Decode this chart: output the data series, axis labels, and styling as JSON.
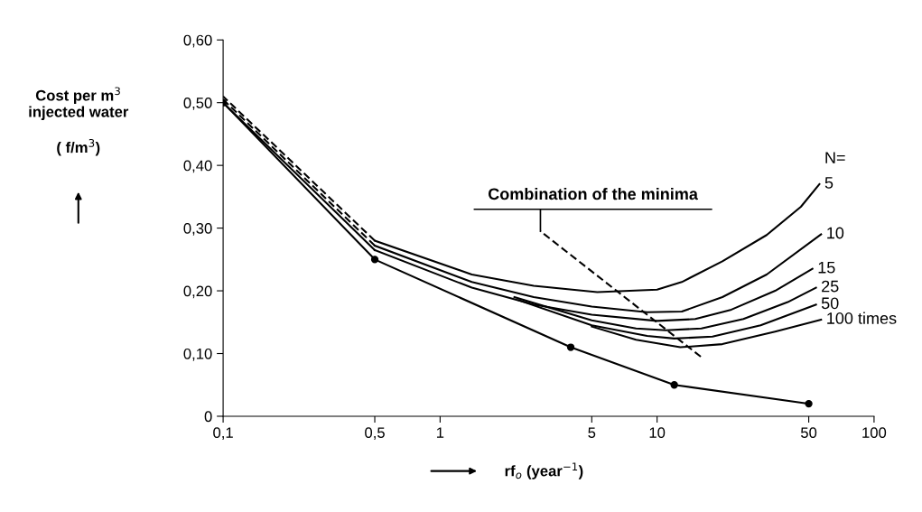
{
  "chart_data": {
    "type": "line",
    "xlabel": "rf$_{o}$ (year$^{−1}$)",
    "ylabel": "Cost per m$^{3}$\ninjected water\n\n( f/m$^{3}$)",
    "log": "x",
    "xlim": [
      0.1,
      100
    ],
    "ylim": [
      0,
      0.6
    ],
    "xticks": [
      {
        "value": 0.1,
        "label": "0,1"
      },
      {
        "value": 0.5,
        "label": "0,5"
      },
      1,
      5,
      10,
      50,
      100
    ],
    "yticks": [
      0,
      {
        "value": 0.1,
        "label": "0,10"
      },
      {
        "value": 0.2,
        "label": "0,20"
      },
      {
        "value": 0.3,
        "label": "0,30"
      },
      {
        "value": 0.4,
        "label": "0,40"
      },
      {
        "value": 0.5,
        "label": "0,50"
      },
      {
        "value": 0.6,
        "label": "0,60"
      }
    ],
    "grid": false,
    "annotations": [
      "N=",
      "Combination of the minima"
    ],
    "series": [
      {
        "color": "#000000",
        "line_style": "dashed",
        "x": [
          0.1,
          0.5
        ],
        "values": [
          0.51,
          0.28
        ]
      },
      {
        "color": "#000000",
        "line_style": "dashed",
        "x": [
          0.1,
          0.5
        ],
        "values": [
          0.505,
          0.272
        ]
      },
      {
        "color": "#000000",
        "line_style": "solid",
        "x": [
          0.1,
          0.5
        ],
        "values": [
          0.5,
          0.265
        ]
      },
      {
        "color": "#000000",
        "line_style": "solid",
        "marker": "circle",
        "x": [
          0.1,
          0.5,
          4,
          12,
          50
        ],
        "values": [
          0.5,
          0.25,
          0.11,
          0.05,
          0.02
        ]
      },
      {
        "name": "5",
        "color": "#000000",
        "line_style": "solid",
        "x": [
          0.5,
          1.4,
          2.7,
          5.3,
          10,
          13,
          20,
          32,
          46,
          56
        ],
        "values": [
          0.28,
          0.226,
          0.208,
          0.198,
          0.202,
          0.214,
          0.247,
          0.289,
          0.334,
          0.37
        ]
      },
      {
        "name": "10",
        "color": "#000000",
        "line_style": "solid",
        "x": [
          0.5,
          1.4,
          2.7,
          5,
          9,
          13,
          20,
          32,
          57
        ],
        "values": [
          0.272,
          0.214,
          0.19,
          0.175,
          0.166,
          0.167,
          0.19,
          0.226,
          0.29
        ]
      },
      {
        "name": "15",
        "color": "#000000",
        "line_style": "solid",
        "x": [
          0.5,
          1.4,
          2.7,
          5,
          10,
          15,
          22,
          35,
          52
        ],
        "values": [
          0.265,
          0.205,
          0.178,
          0.162,
          0.152,
          0.155,
          0.17,
          0.2,
          0.235
        ]
      },
      {
        "name": "25",
        "color": "#000000",
        "line_style": "solid",
        "x": [
          2.2,
          5,
          8,
          11,
          16,
          25,
          40,
          54
        ],
        "values": [
          0.19,
          0.153,
          0.14,
          0.137,
          0.14,
          0.155,
          0.182,
          0.205
        ]
      },
      {
        "name": "50",
        "color": "#000000",
        "line_style": "solid",
        "x": [
          2.3,
          5,
          9,
          12,
          18,
          30,
          54
        ],
        "values": [
          0.185,
          0.145,
          0.128,
          0.124,
          0.127,
          0.145,
          0.178
        ]
      },
      {
        "name": "100 times",
        "color": "#000000",
        "line_style": "solid",
        "x": [
          5,
          8,
          12.8,
          20,
          35,
          57
        ],
        "values": [
          0.143,
          0.122,
          0.11,
          0.115,
          0.135,
          0.154
        ]
      },
      {
        "color": "#000000",
        "line_style": "dashed",
        "x": [
          2.9,
          15.9
        ],
        "values": [
          0.295,
          0.095
        ]
      }
    ]
  }
}
